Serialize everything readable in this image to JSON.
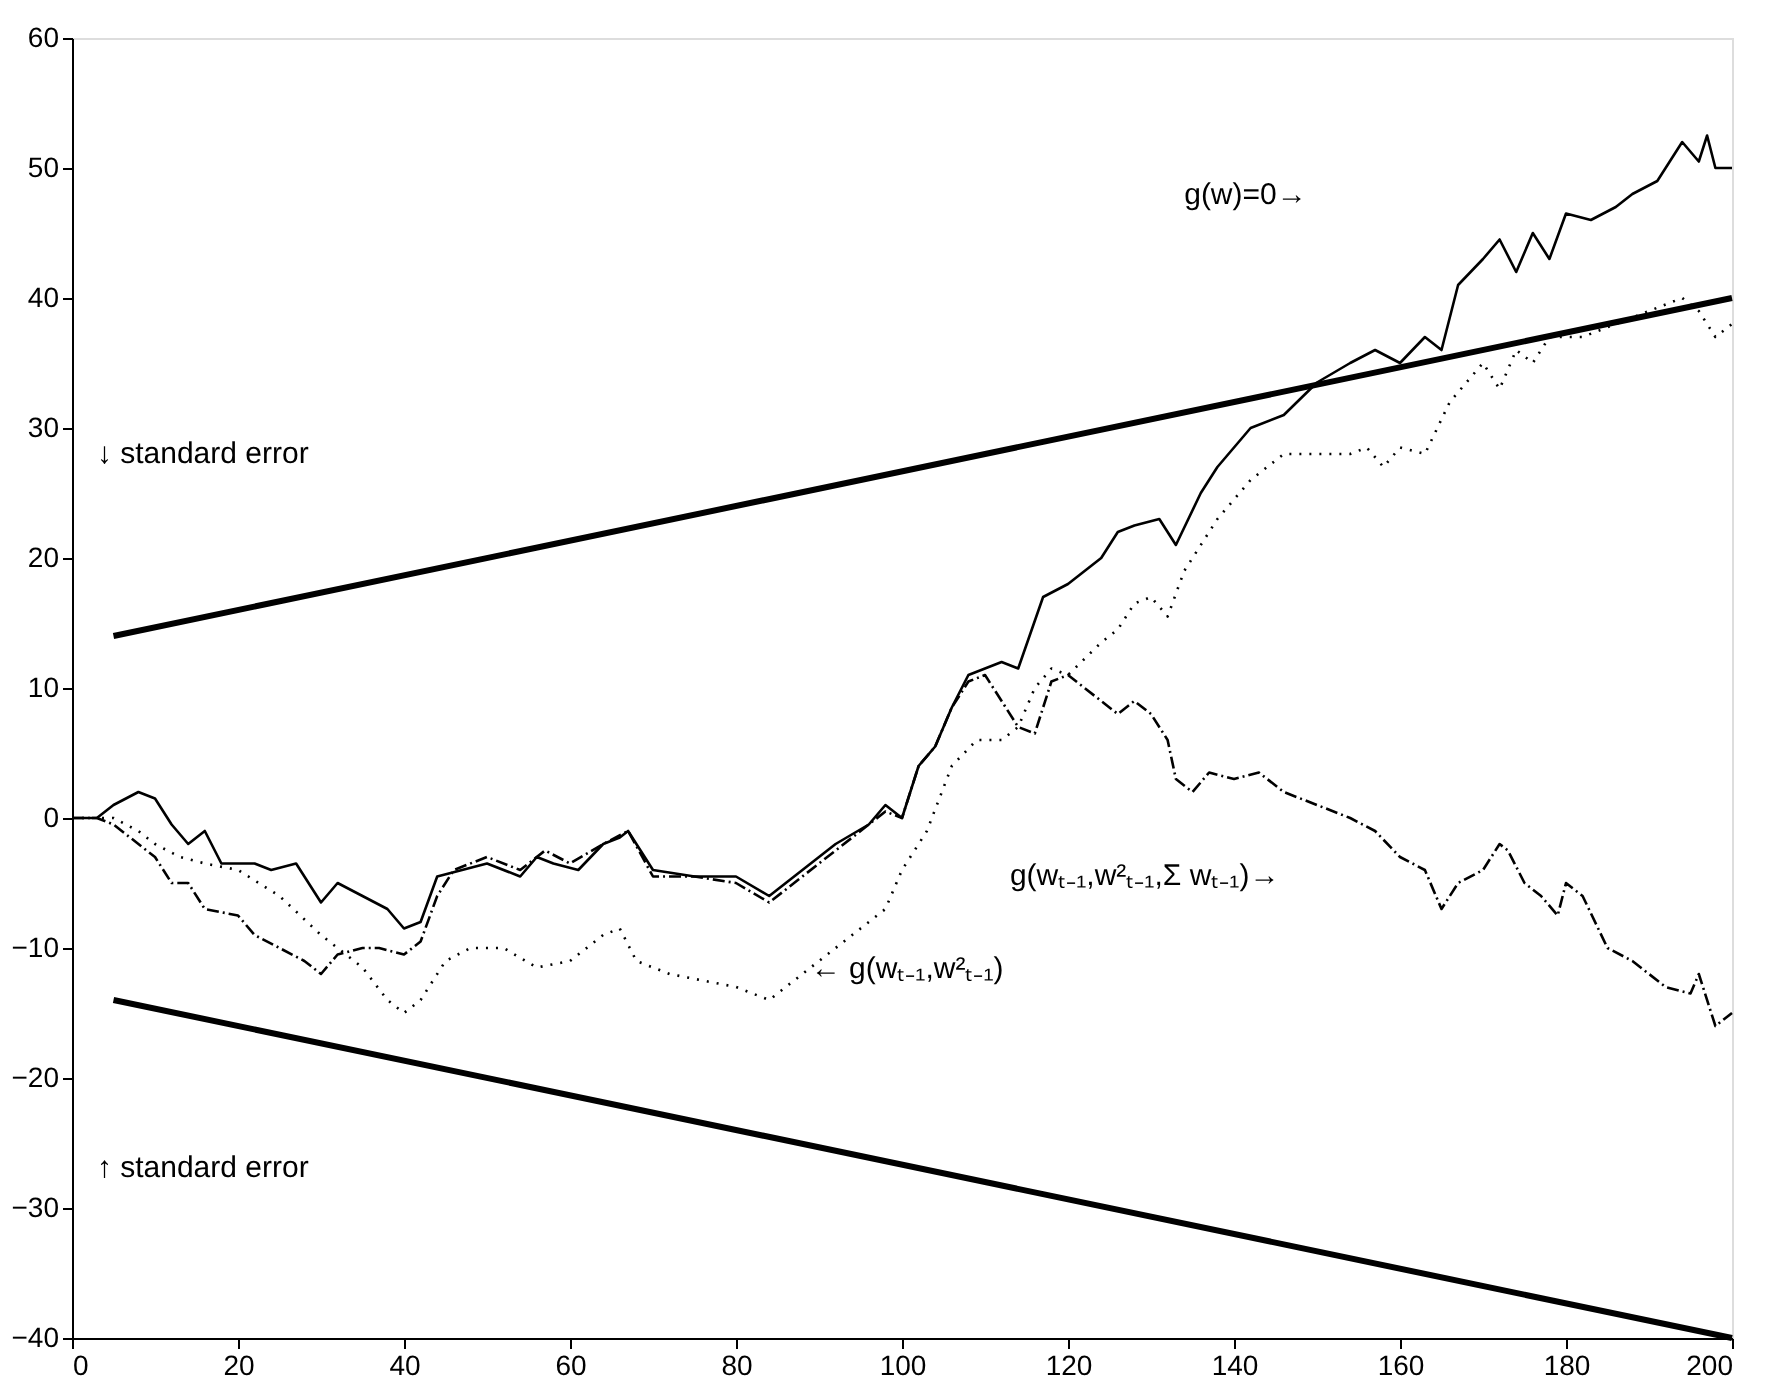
{
  "chart_data": {
    "type": "line",
    "xlim": [
      0,
      200
    ],
    "ylim": [
      -40,
      60
    ],
    "xticks": [
      0,
      20,
      40,
      60,
      80,
      100,
      120,
      140,
      160,
      180,
      200
    ],
    "yticks": [
      -40,
      -30,
      -20,
      -10,
      0,
      10,
      20,
      30,
      40,
      50,
      60
    ],
    "grid": false,
    "marker": "none",
    "series": [
      {
        "color": "#000000",
        "line_style": "solid",
        "x": [
          0,
          3,
          5,
          8,
          10,
          12,
          14,
          16,
          18,
          22,
          24,
          27,
          30,
          32,
          35,
          38,
          40,
          42,
          44,
          47,
          50,
          54,
          56,
          58,
          61,
          64,
          66,
          67,
          70,
          75,
          80,
          84,
          88,
          92,
          96,
          98,
          100,
          102,
          104,
          106,
          108,
          110,
          112,
          114,
          117,
          120,
          124,
          126,
          128,
          131,
          133,
          136,
          138,
          142,
          146,
          150,
          154,
          157,
          160,
          163,
          165,
          167,
          170,
          172,
          174,
          176,
          178,
          180,
          183,
          186,
          188,
          191,
          194,
          196,
          197,
          198,
          200
        ],
        "values": [
          0,
          0,
          1,
          2,
          1.5,
          -0.5,
          -2,
          -1,
          -3.5,
          -3.5,
          -4,
          -3.5,
          -6.5,
          -5,
          -6,
          -7,
          -8.5,
          -8,
          -4.5,
          -4,
          -3.5,
          -4.5,
          -3,
          -3.5,
          -4,
          -2,
          -1.5,
          -1,
          -4,
          -4.5,
          -4.5,
          -6,
          -4,
          -2,
          -0.5,
          1,
          0,
          4,
          5.5,
          8.5,
          11,
          11.5,
          12,
          11.5,
          17,
          18,
          20,
          22,
          22.5,
          23,
          21,
          25,
          27,
          30,
          31,
          33.5,
          35,
          36,
          35,
          37,
          36,
          41,
          43,
          44.5,
          42,
          45,
          43,
          46.5,
          46,
          47,
          48,
          49,
          52,
          50.5,
          52.5,
          50,
          50
        ]
      },
      {
        "color": "#000000",
        "line_style": "dotted",
        "x": [
          0,
          5,
          8,
          10,
          13,
          16,
          20,
          25,
          30,
          35,
          38,
          40,
          42,
          45,
          48,
          52,
          56,
          60,
          64,
          66,
          68,
          72,
          76,
          80,
          84,
          88,
          92,
          95,
          98,
          100,
          103,
          106,
          109,
          112,
          114,
          116,
          118,
          120,
          124,
          126,
          128,
          130,
          132,
          134,
          138,
          142,
          146,
          150,
          154,
          156,
          158,
          160,
          163,
          166,
          170,
          172,
          174,
          176,
          178,
          182,
          186,
          190,
          194,
          196,
          198,
          200
        ],
        "values": [
          0,
          0,
          -1,
          -2,
          -3,
          -3.5,
          -4,
          -6,
          -9,
          -11.5,
          -14,
          -15,
          -14,
          -11,
          -10,
          -10,
          -11.5,
          -11,
          -9,
          -8.5,
          -11,
          -12,
          -12.5,
          -13,
          -14,
          -12,
          -10,
          -8.5,
          -7,
          -4,
          -1,
          4,
          6,
          6,
          7,
          10,
          11.5,
          11,
          13.5,
          14.5,
          16.5,
          17,
          15.5,
          19,
          23,
          26,
          28,
          28,
          28,
          28.5,
          27,
          28.5,
          28,
          32,
          35,
          33,
          36,
          35,
          37,
          37,
          38,
          39,
          40,
          39,
          37,
          38
        ]
      },
      {
        "color": "#000000",
        "line_style": "dashed",
        "x": [
          0,
          3,
          5,
          8,
          10,
          12,
          14,
          16,
          20,
          22,
          25,
          28,
          30,
          32,
          35,
          37,
          40,
          42,
          44,
          46,
          50,
          54,
          57,
          60,
          64,
          67,
          70,
          75,
          80,
          84,
          88,
          92,
          96,
          98,
          100,
          102,
          104,
          106,
          108,
          110,
          112,
          114,
          116,
          118,
          120,
          122,
          124,
          126,
          128,
          130,
          132,
          133,
          135,
          137,
          140,
          143,
          146,
          150,
          154,
          157,
          160,
          163,
          165,
          167,
          170,
          172,
          173,
          175,
          177,
          179,
          180,
          182,
          185,
          188,
          190,
          192,
          195,
          196,
          198,
          200
        ],
        "values": [
          0,
          0,
          -0.5,
          -2,
          -3,
          -5,
          -5,
          -7,
          -7.5,
          -9,
          -10,
          -11,
          -12,
          -10.5,
          -10,
          -10,
          -10.5,
          -9.5,
          -6,
          -4,
          -3,
          -4,
          -2.5,
          -3.5,
          -2,
          -1,
          -4.5,
          -4.5,
          -5,
          -6.5,
          -4.5,
          -2.5,
          -0.5,
          0.5,
          0,
          4,
          5.5,
          8.5,
          10.5,
          11,
          9,
          7,
          6.5,
          10.5,
          11,
          10,
          9,
          8,
          9,
          8,
          6,
          3,
          2,
          3.5,
          3,
          3.5,
          2,
          1,
          0,
          -1,
          -3,
          -4,
          -7,
          -5,
          -4,
          -2,
          -2.5,
          -5,
          -6,
          -7.5,
          -5,
          -6,
          -10,
          -11,
          -12,
          -13,
          -13.5,
          -12,
          -16,
          -15
        ]
      },
      {
        "color": "#000000",
        "line_style": "solid",
        "x": [
          5,
          200
        ],
        "values": [
          14,
          40
        ]
      },
      {
        "color": "#000000",
        "line_style": "solid",
        "x": [
          5,
          200
        ],
        "values": [
          -14,
          -40
        ]
      }
    ],
    "annotations": [
      "g(w)=0→",
      "↓ standard error",
      "↑ standard error",
      {
        "text": "← g(wₜ₋₁,w²ₜ₋₁)",
        "x": 89,
        "y": -11.5
      },
      "g(wₜ₋₁,w²ₜ₋₁,Σ wₜ₋₁)→"
    ]
  }
}
